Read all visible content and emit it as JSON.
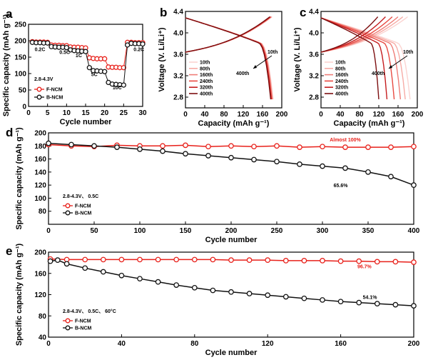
{
  "figure_title": "",
  "chart_data": [
    {
      "id": "a",
      "type": "scatter",
      "panel_label": "a",
      "xlabel": "Cycle number",
      "ylabel": "Specific capacity (mAh g⁻¹)",
      "xlim": [
        0,
        30
      ],
      "ylim": [
        0,
        250
      ],
      "xticks": [
        0,
        5,
        10,
        15,
        20,
        25,
        30
      ],
      "yticks": [
        0,
        50,
        100,
        150,
        200,
        250
      ],
      "condition": "2.8-4.3V",
      "legend": [
        "F-NCM",
        "B-NCM"
      ],
      "rate_labels": [
        "0.2C",
        "0.5C",
        "1C",
        "5C",
        "10C",
        "0.2C"
      ],
      "series": [
        {
          "name": "F-NCM",
          "color": "#e8201a",
          "marker": "circle-open",
          "x": [
            1,
            2,
            3,
            4,
            5,
            6,
            7,
            8,
            9,
            10,
            11,
            12,
            13,
            14,
            15,
            16,
            17,
            18,
            19,
            20,
            21,
            22,
            23,
            24,
            25,
            26,
            27,
            28,
            29,
            30
          ],
          "y": [
            197,
            196,
            196,
            196,
            195,
            187,
            186,
            186,
            185,
            185,
            181,
            180,
            180,
            179,
            178,
            148,
            146,
            145,
            145,
            145,
            120,
            119,
            119,
            118,
            118,
            195,
            195,
            194,
            194,
            194
          ]
        },
        {
          "name": "B-NCM",
          "color": "#111111",
          "marker": "circle-open",
          "x": [
            1,
            2,
            3,
            4,
            5,
            6,
            7,
            8,
            9,
            10,
            11,
            12,
            13,
            14,
            15,
            16,
            17,
            18,
            19,
            20,
            21,
            22,
            23,
            24,
            25,
            26,
            27,
            28,
            29,
            30
          ],
          "y": [
            195,
            194,
            194,
            193,
            193,
            182,
            181,
            180,
            180,
            179,
            172,
            170,
            169,
            168,
            167,
            118,
            109,
            108,
            107,
            106,
            73,
            68,
            67,
            66,
            65,
            187,
            192,
            191,
            191,
            190
          ]
        }
      ]
    },
    {
      "id": "b",
      "type": "line",
      "panel_label": "b",
      "xlabel": "Capacity (mAh g⁻¹)",
      "ylabel": "Voltage (V. Li/Li⁺)",
      "xlim": [
        0,
        200
      ],
      "ylim": [
        2.6,
        4.4
      ],
      "xticks": [
        0,
        40,
        80,
        120,
        160,
        200
      ],
      "yticks": [
        2.8,
        3.2,
        3.6,
        4.0,
        4.4
      ],
      "legend": [
        "10th",
        "80th",
        "160th",
        "240th",
        "320th",
        "400th"
      ],
      "legend_colors": [
        "#fbd3d0",
        "#f7aba5",
        "#ef7e78",
        "#e84a41",
        "#c51d1f",
        "#7d0f10"
      ],
      "annotations": [
        "10th",
        "400th"
      ],
      "charge_end_caps": [
        180,
        179,
        178,
        177,
        176,
        175
      ],
      "discharge_end_caps": [
        182,
        181,
        180,
        179,
        178,
        177
      ]
    },
    {
      "id": "c",
      "type": "line",
      "panel_label": "c",
      "xlabel": "Capacity (mAh g⁻¹)",
      "ylabel": "Voltage (V. Li/Li⁺)",
      "xlim": [
        0,
        200
      ],
      "ylim": [
        2.6,
        4.4
      ],
      "xticks": [
        0,
        40,
        80,
        120,
        160,
        200
      ],
      "yticks": [
        2.8,
        3.2,
        3.6,
        4.0,
        4.4
      ],
      "legend": [
        "10th",
        "80th",
        "160th",
        "240th",
        "320th",
        "400th"
      ],
      "legend_colors": [
        "#fbd3d0",
        "#f7aba5",
        "#ef7e78",
        "#e84a41",
        "#c51d1f",
        "#7d0f10"
      ],
      "annotations": [
        "10th",
        "400th"
      ],
      "charge_end_caps": [
        180,
        170,
        160,
        148,
        134,
        118
      ],
      "discharge_end_caps": [
        185,
        175,
        165,
        152,
        137,
        120
      ]
    },
    {
      "id": "d",
      "type": "scatter",
      "panel_label": "d",
      "xlabel": "Cycle number",
      "ylabel": "Specific capacity (mAh g⁻¹)",
      "xlim": [
        0,
        400
      ],
      "ylim": [
        60,
        200
      ],
      "xticks": [
        0,
        50,
        100,
        150,
        200,
        250,
        300,
        350,
        400
      ],
      "yticks": [
        80,
        100,
        120,
        140,
        160,
        180,
        200
      ],
      "condition": "2.8-4.3V、 0.5C",
      "legend": [
        "F-NCM",
        "B-NCM"
      ],
      "annotations": [
        "Almost 100%",
        "65.6%"
      ],
      "series": [
        {
          "name": "F-NCM",
          "color": "#e8201a",
          "marker": "circle-open",
          "x": [
            0,
            25,
            50,
            75,
            100,
            125,
            150,
            175,
            200,
            225,
            250,
            275,
            300,
            325,
            350,
            375,
            400
          ],
          "y": [
            182,
            180,
            179,
            181,
            180,
            180,
            181,
            179,
            180,
            179,
            180,
            178,
            179,
            178,
            178,
            178,
            179
          ]
        },
        {
          "name": "B-NCM",
          "color": "#111111",
          "marker": "circle-open",
          "x": [
            0,
            25,
            50,
            75,
            100,
            125,
            150,
            175,
            200,
            225,
            250,
            275,
            300,
            325,
            350,
            375,
            400
          ],
          "y": [
            184,
            182,
            180,
            178,
            175,
            172,
            168,
            165,
            162,
            159,
            156,
            152,
            149,
            146,
            140,
            133,
            120
          ]
        }
      ]
    },
    {
      "id": "e",
      "type": "scatter",
      "panel_label": "e",
      "xlabel": "Cycle number",
      "ylabel": "Specific capacity (mAh g⁻¹)",
      "xlim": [
        0,
        200
      ],
      "ylim": [
        40,
        200
      ],
      "xticks": [
        0,
        40,
        80,
        120,
        160,
        200
      ],
      "yticks": [
        40,
        80,
        120,
        160,
        200
      ],
      "condition": "2.8-4.3V、 0.5C、 60°C",
      "legend": [
        "F-NCM",
        "B-NCM"
      ],
      "annotations": [
        "96.7%",
        "54.1%"
      ],
      "series": [
        {
          "name": "F-NCM",
          "color": "#e8201a",
          "marker": "circle-open",
          "x": [
            1,
            10,
            20,
            30,
            40,
            50,
            60,
            70,
            80,
            90,
            100,
            110,
            120,
            130,
            140,
            150,
            160,
            170,
            180,
            190,
            200
          ],
          "y": [
            187,
            186,
            186,
            186,
            186,
            186,
            186,
            186,
            186,
            186,
            185,
            185,
            185,
            184,
            184,
            184,
            183,
            183,
            182,
            182,
            181
          ]
        },
        {
          "name": "B-NCM",
          "color": "#111111",
          "marker": "circle-open",
          "x": [
            1,
            5,
            10,
            20,
            30,
            40,
            50,
            60,
            70,
            80,
            90,
            100,
            110,
            120,
            130,
            140,
            150,
            160,
            170,
            180,
            190,
            200
          ],
          "y": [
            183,
            185,
            178,
            170,
            163,
            156,
            150,
            144,
            138,
            133,
            128,
            125,
            122,
            119,
            116,
            113,
            110,
            107,
            105,
            103,
            101,
            99
          ]
        }
      ]
    }
  ]
}
